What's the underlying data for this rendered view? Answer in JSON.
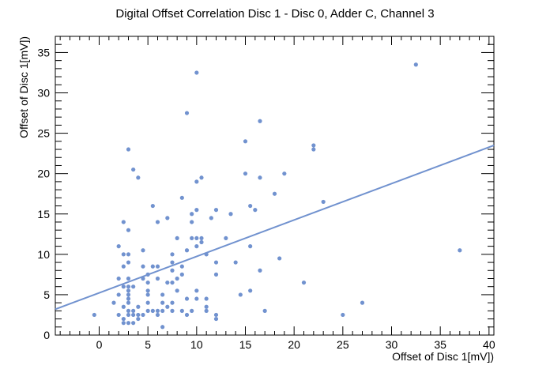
{
  "chart_data": {
    "type": "scatter",
    "title": "Digital Offset Correlation Disc 1 - Disc 0, Adder C, Channel 3",
    "xlabel": "Offset of Disc 1[mV])",
    "ylabel": "Offset of Disc 1[mV])",
    "xlim": [
      -4.5,
      40.5
    ],
    "ylim": [
      0,
      37
    ],
    "x_ticks": [
      0,
      5,
      10,
      15,
      20,
      25,
      30,
      35,
      40
    ],
    "y_ticks": [
      0,
      5,
      10,
      15,
      20,
      25,
      30,
      35
    ],
    "grid": false,
    "marker_color": "#7192cf",
    "line_color": "#7192cf",
    "fit_line": {
      "x": [
        -4.5,
        40.5
      ],
      "y": [
        3.2,
        23.5
      ]
    },
    "points": [
      [
        -0.5,
        2.5
      ],
      [
        1.5,
        4
      ],
      [
        2,
        2.5
      ],
      [
        2,
        5
      ],
      [
        2,
        11
      ],
      [
        2,
        7
      ],
      [
        2.5,
        2
      ],
      [
        2.5,
        3.5
      ],
      [
        2.5,
        6
      ],
      [
        2.5,
        8.5
      ],
      [
        2.5,
        10
      ],
      [
        2.5,
        14
      ],
      [
        2.5,
        1.5
      ],
      [
        3,
        1.5
      ],
      [
        3,
        2.5
      ],
      [
        3,
        3
      ],
      [
        3,
        4
      ],
      [
        3,
        4.5
      ],
      [
        3,
        5
      ],
      [
        3,
        5.5
      ],
      [
        3,
        6
      ],
      [
        3,
        7
      ],
      [
        3,
        9
      ],
      [
        3,
        10
      ],
      [
        3,
        13
      ],
      [
        3,
        23
      ],
      [
        3.5,
        1.5
      ],
      [
        3.5,
        2.5
      ],
      [
        3.5,
        3
      ],
      [
        3.5,
        6
      ],
      [
        3.5,
        20.5
      ],
      [
        4,
        2
      ],
      [
        4,
        2.5
      ],
      [
        4,
        3.5
      ],
      [
        4,
        19.5
      ],
      [
        4.5,
        2.5
      ],
      [
        4.5,
        7
      ],
      [
        4.5,
        8.5
      ],
      [
        4.5,
        10.5
      ],
      [
        5,
        3
      ],
      [
        5,
        4
      ],
      [
        5,
        5
      ],
      [
        5,
        5.5
      ],
      [
        5,
        6.5
      ],
      [
        5,
        7.5
      ],
      [
        5.5,
        3
      ],
      [
        5.5,
        8.5
      ],
      [
        5.5,
        16
      ],
      [
        6,
        2.5
      ],
      [
        6,
        3
      ],
      [
        6,
        7
      ],
      [
        6,
        8.5
      ],
      [
        6,
        14
      ],
      [
        6.5,
        1
      ],
      [
        6.5,
        3
      ],
      [
        6.5,
        4
      ],
      [
        6.5,
        5
      ],
      [
        7,
        3.5
      ],
      [
        7,
        6.5
      ],
      [
        7,
        14.5
      ],
      [
        7.5,
        3
      ],
      [
        7.5,
        4
      ],
      [
        7.5,
        6.5
      ],
      [
        7.5,
        8
      ],
      [
        7.5,
        9
      ],
      [
        7.5,
        10
      ],
      [
        8,
        5.5
      ],
      [
        8,
        7
      ],
      [
        8,
        12
      ],
      [
        8.5,
        3
      ],
      [
        8.5,
        7.5
      ],
      [
        8.5,
        8.5
      ],
      [
        8.5,
        17
      ],
      [
        9,
        2.5
      ],
      [
        9,
        4.5
      ],
      [
        9,
        10.5
      ],
      [
        9,
        27.5
      ],
      [
        9.5,
        3
      ],
      [
        9.5,
        12
      ],
      [
        9.5,
        14
      ],
      [
        9.5,
        15
      ],
      [
        10,
        4.5
      ],
      [
        10,
        5.5
      ],
      [
        10,
        11
      ],
      [
        10,
        12
      ],
      [
        10,
        15.5
      ],
      [
        10,
        19
      ],
      [
        10,
        32.5
      ],
      [
        10.5,
        11.5
      ],
      [
        10.5,
        12
      ],
      [
        10.5,
        19.5
      ],
      [
        11,
        3
      ],
      [
        11,
        3.5
      ],
      [
        11,
        4.5
      ],
      [
        11,
        10
      ],
      [
        11.5,
        14.5
      ],
      [
        12,
        2
      ],
      [
        12,
        2.5
      ],
      [
        12,
        7.5
      ],
      [
        12,
        9
      ],
      [
        12,
        15.5
      ],
      [
        13,
        12
      ],
      [
        13.5,
        15
      ],
      [
        14,
        9
      ],
      [
        14.5,
        5
      ],
      [
        15,
        20
      ],
      [
        15,
        24
      ],
      [
        15.5,
        5.5
      ],
      [
        15.5,
        11
      ],
      [
        15.5,
        16
      ],
      [
        16,
        15.5
      ],
      [
        16.5,
        8
      ],
      [
        16.5,
        19.5
      ],
      [
        16.5,
        26.5
      ],
      [
        17,
        3
      ],
      [
        18,
        17.5
      ],
      [
        18.5,
        9.5
      ],
      [
        19,
        20
      ],
      [
        21,
        6.5
      ],
      [
        22,
        23
      ],
      [
        22,
        23.5
      ],
      [
        23,
        16.5
      ],
      [
        25,
        2.5
      ],
      [
        27,
        4
      ],
      [
        32.5,
        33.5
      ],
      [
        37,
        10.5
      ]
    ]
  }
}
